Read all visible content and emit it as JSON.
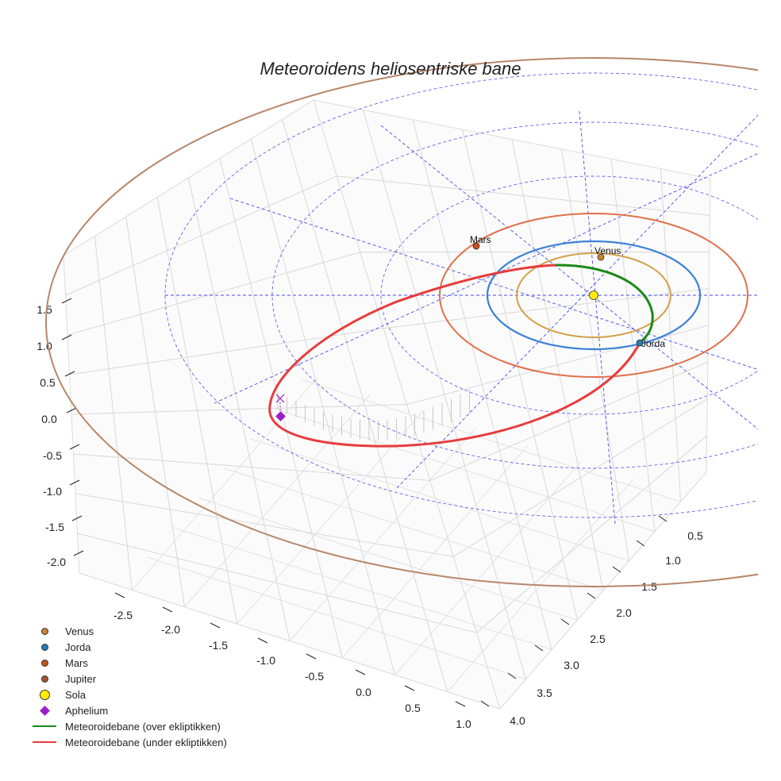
{
  "chart_data": {
    "type": "scatter",
    "title": "Meteoroidens heliosentriske bane",
    "projection": "3d",
    "x_ticks": [
      "-2.5",
      "-2.0",
      "-1.5",
      "-1.0",
      "-0.5",
      "0.0",
      "0.5",
      "1.0"
    ],
    "y_ticks": [
      "0.5",
      "1.0",
      "1.5",
      "2.0",
      "2.5",
      "3.0",
      "3.5",
      "4.0"
    ],
    "z_ticks": [
      "1.5",
      "1.0",
      "0.5",
      "0.0",
      "-0.5",
      "-1.0",
      "-1.5",
      "-2.0"
    ],
    "xlim": [
      -2.8,
      1.2
    ],
    "ylim": [
      0.2,
      4.2
    ],
    "zlim": [
      -2.3,
      1.9
    ],
    "planets": [
      {
        "name": "Venus",
        "color": "#c8862c",
        "orbit_color": "#d4a04a",
        "orbit_radius_au": 0.72
      },
      {
        "name": "Jorda",
        "color": "#2a7ab5",
        "orbit_color": "#3b82d6",
        "orbit_radius_au": 1.0
      },
      {
        "name": "Mars",
        "color": "#c8501e",
        "orbit_color": "#e0704a",
        "orbit_radius_au": 1.52
      },
      {
        "name": "Jupiter",
        "color": "#a0562c",
        "orbit_color": "#b8876a",
        "orbit_radius_au": 5.2
      }
    ],
    "sun": {
      "name": "Sola",
      "color": "#ffee00"
    },
    "aphelion": {
      "name": "Aphelium",
      "color": "#9b1fc9"
    },
    "orbit_segments": [
      {
        "name": "Meteoroidebane (over ekliptikken)",
        "color": "#1a8a1a"
      },
      {
        "name": "Meteoroidebane (under ekliptikken)",
        "color": "#e83c3c"
      }
    ],
    "grid": true
  },
  "legend": [
    {
      "label": "Venus",
      "kind": "dot",
      "color": "#c8862c"
    },
    {
      "label": "Jorda",
      "kind": "dot",
      "color": "#2a7ab5"
    },
    {
      "label": "Mars",
      "kind": "dot",
      "color": "#c8501e"
    },
    {
      "label": "Jupiter",
      "kind": "dot",
      "color": "#a0562c"
    },
    {
      "label": "Sola",
      "kind": "bigdot",
      "color": "#ffee00"
    },
    {
      "label": "Aphelium",
      "kind": "diamond",
      "color": "#9b1fc9"
    },
    {
      "label": "Meteoroidebane (over ekliptikken)",
      "kind": "line",
      "color": "#1a8a1a"
    },
    {
      "label": "Meteoroidebane (under ekliptikken)",
      "kind": "line",
      "color": "#e83c3c"
    }
  ]
}
